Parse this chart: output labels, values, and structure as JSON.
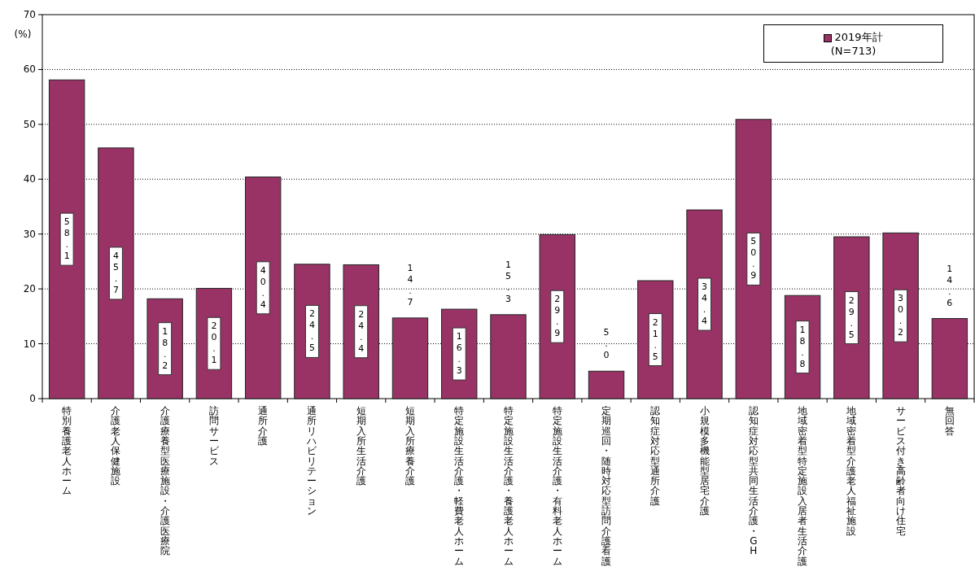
{
  "chart_data": {
    "type": "bar",
    "ylabel": "(%)",
    "categories": [
      "特別養護老人ホーム",
      "介護老人保健施設",
      "介護療養型医療施設・介護医療院",
      "訪問サービス",
      "通所介護",
      "通所リハビリテーション",
      "短期入所生活介護",
      "短期入所療養介護",
      "特定施設生活介護・軽費老人ホーム",
      "特定施設生活介護・養護老人ホーム",
      "特定施設生活介護・有料老人ホーム",
      "定期巡回・随時対応型訪問介護看護",
      "認知症対応型通所介護",
      "小規模多機能型居宅介護",
      "認知症対応型共同生活介護・GH",
      "地域密着型特定施設入居者生活介護",
      "地域密着型介護老人福祉施設",
      "サービス付き高齢者向け住宅",
      "無回答"
    ],
    "series": [
      {
        "name": "2019年計\n(N=713)",
        "color": "#993366",
        "values": [
          58.1,
          45.7,
          18.2,
          20.1,
          40.4,
          24.5,
          24.4,
          14.7,
          16.3,
          15.3,
          29.9,
          5.0,
          21.5,
          34.4,
          50.9,
          18.8,
          29.5,
          30.2,
          14.6
        ],
        "value_labels": [
          "58.1",
          "45.7",
          "18.2",
          "20.1",
          "40.4",
          "24.5",
          "24.4",
          "14.7",
          "16.3",
          "15.3",
          "29.9",
          "5.0",
          "21.5",
          "34.4",
          "50.9",
          "18.8",
          "29.5",
          "30.2",
          "14.6"
        ]
      }
    ],
    "ylim": [
      0,
      70
    ],
    "yticks": [
      0,
      10,
      20,
      30,
      40,
      50,
      60,
      70
    ],
    "grid": "y",
    "legend": "top right"
  }
}
